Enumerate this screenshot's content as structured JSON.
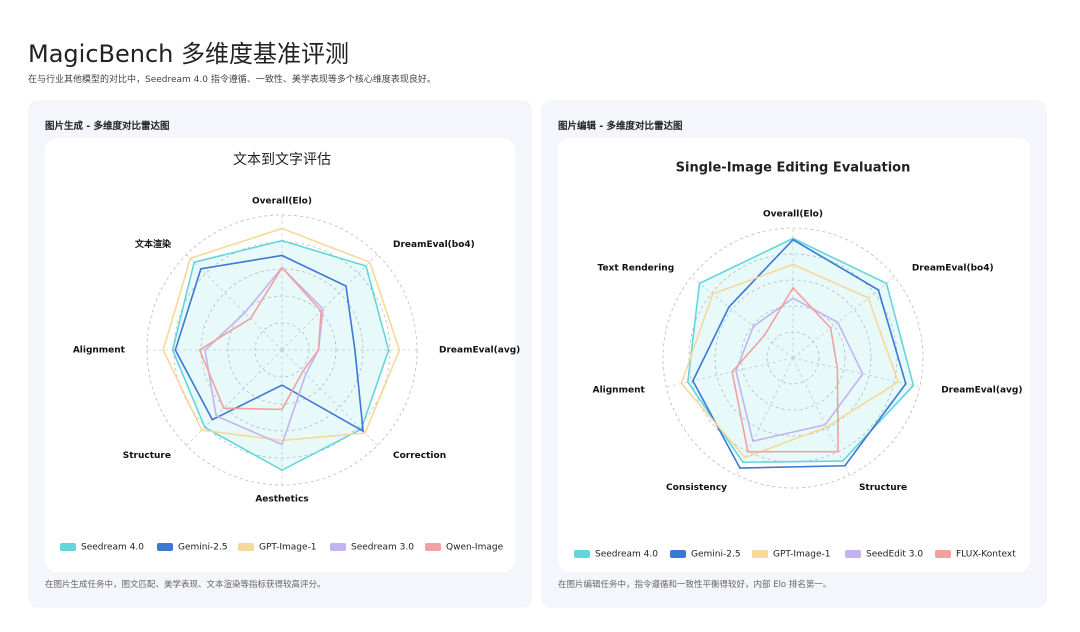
{
  "page": {
    "title": "MagicBench 多维度基准评测",
    "subtitle": "在与行业其他模型的对比中，Seedream 4.0 指令遵循、一致性、美学表现等多个核心维度表现良好。"
  },
  "cards": [
    {
      "title": "图片生成 - 多维度对比雷达图",
      "note": "在图片生成任务中，图文匹配、美学表现、文本渲染等指标获得较高评分。"
    },
    {
      "title": "图片编辑 - 多维度对比雷达图",
      "note": "在图片编辑任务中，指令遵循和一致性平衡得较好，内部 Elo 排名第一。"
    }
  ],
  "chart_data": [
    {
      "type": "radar",
      "title": "文本到文字评估",
      "categories": [
        "Overall(Elo)",
        "DreamEval(bo4)",
        "DreamEval(avg)",
        "Correction",
        "Aesthetics",
        "Structure",
        "Alignment",
        "文本渲染"
      ],
      "rlim": [
        0,
        100
      ],
      "grid_rings": 5,
      "series": [
        {
          "name": "Seedream 4.0",
          "color": "#62d6dc",
          "filled": true,
          "values": [
            81,
            88,
            79,
            83,
            89,
            81,
            81,
            92
          ]
        },
        {
          "name": "Gemini-2.5",
          "color": "#3a78d6",
          "values": [
            70,
            67,
            54,
            85,
            26,
            73,
            79,
            85
          ]
        },
        {
          "name": "GPT-Image-1",
          "color": "#f5d99a",
          "values": [
            90,
            92,
            87,
            87,
            67,
            84,
            88,
            96
          ]
        },
        {
          "name": "Seedream 3.0",
          "color": "#c3b3f0",
          "values": [
            61,
            43,
            27,
            25,
            70,
            69,
            57,
            39
          ]
        },
        {
          "name": "Qwen-Image",
          "color": "#f2a0a0",
          "values": [
            61,
            41,
            27,
            22,
            44,
            61,
            61,
            33
          ]
        }
      ]
    },
    {
      "type": "radar",
      "title": "Single-Image Editing Evaluation",
      "categories": [
        "Overall(Elo)",
        "DreamEval(bo4)",
        "DreamEval(avg)",
        "Structure",
        "Consistency",
        "Alignment",
        "Text Rendering"
      ],
      "rlim": [
        0,
        100
      ],
      "grid_rings": 5,
      "series": [
        {
          "name": "Seedream 4.0",
          "color": "#62d6dc",
          "filled": true,
          "values": [
            92,
            92,
            95,
            88,
            89,
            83,
            92
          ]
        },
        {
          "name": "Gemini-2.5",
          "color": "#3a78d6",
          "values": [
            91,
            84,
            89,
            92,
            94,
            79,
            63
          ]
        },
        {
          "name": "GPT-Image-1",
          "color": "#f5d99a",
          "values": [
            72,
            74,
            83,
            59,
            85,
            88,
            79
          ]
        },
        {
          "name": "SeedEdit 3.0",
          "color": "#c3b3f0",
          "values": [
            46,
            44,
            55,
            57,
            71,
            45,
            39
          ]
        },
        {
          "name": "FLUX-Kontext",
          "color": "#f2a0a0",
          "values": [
            54,
            37,
            35,
            80,
            80,
            48,
            28
          ]
        }
      ]
    }
  ]
}
